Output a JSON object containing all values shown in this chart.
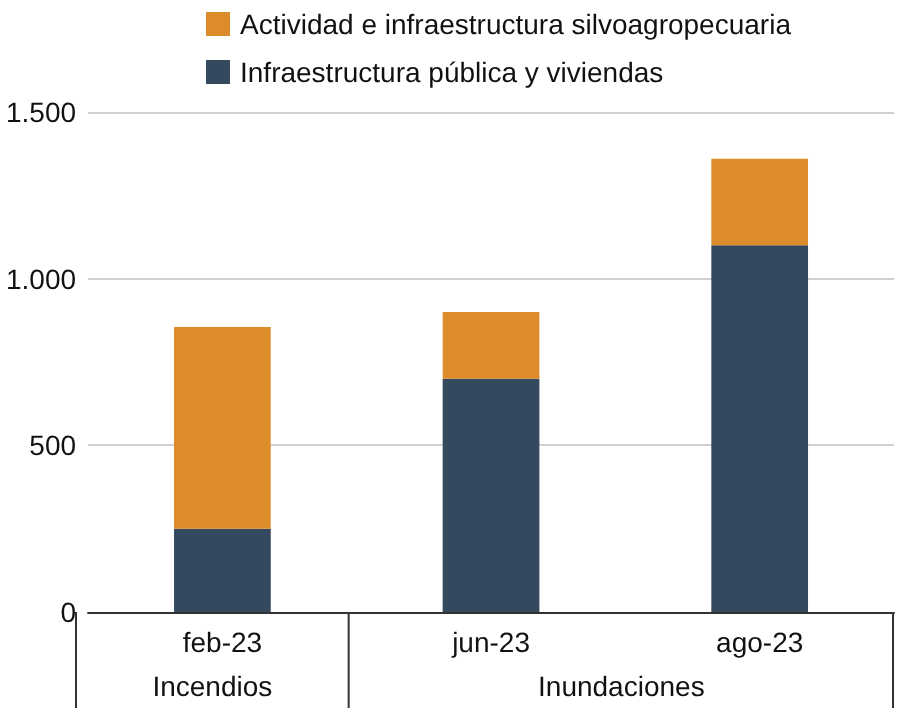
{
  "chart_data": {
    "type": "bar",
    "stacked": true,
    "categories": [
      "feb-23",
      "jun-23",
      "ago-23"
    ],
    "series": [
      {
        "name": "Infraestructura pública y viviendas",
        "color": "#34495e",
        "values": [
          250,
          700,
          1100
        ]
      },
      {
        "name": "Actividad e infraestructura silvoagropecuaria",
        "color": "#dc8c2a",
        "values": [
          605,
          200,
          260
        ]
      }
    ],
    "ylim": [
      0,
      1500
    ],
    "yticks": [
      0,
      500,
      {
        "value": 1000,
        "label": "1.000"
      },
      {
        "value": 1500,
        "label": "1.500"
      }
    ],
    "grid": "y",
    "legend": "top left",
    "annotations": [
      "Incendios",
      "Inundaciones"
    ]
  }
}
